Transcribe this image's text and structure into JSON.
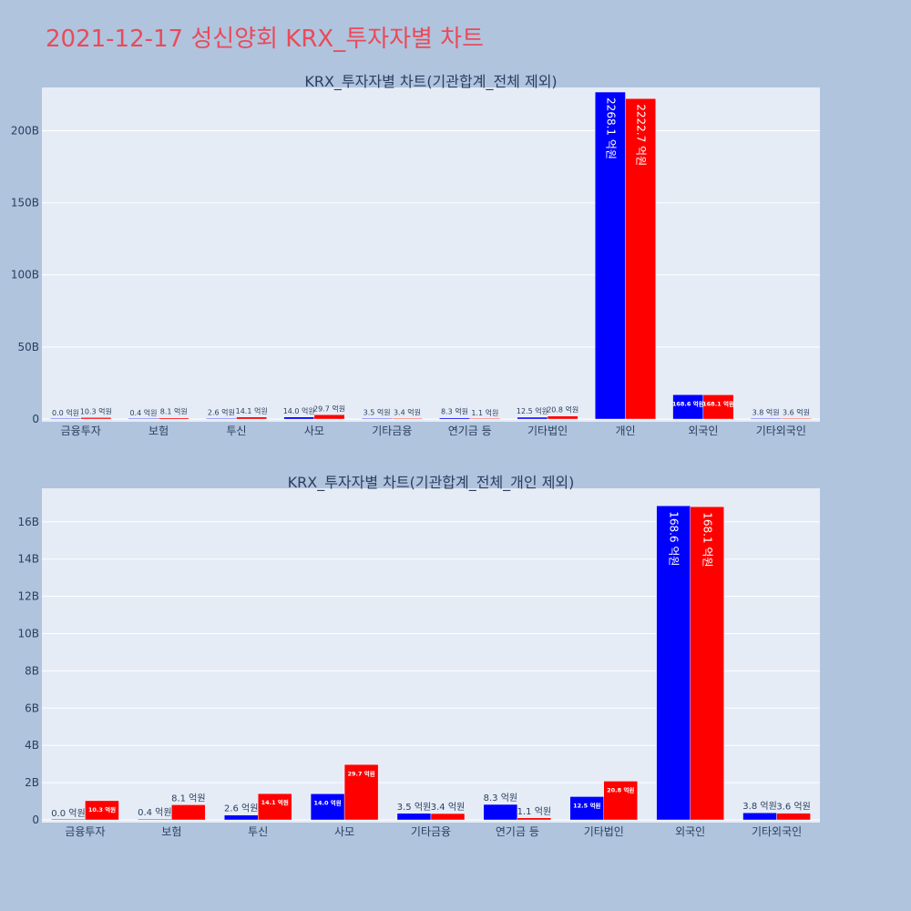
{
  "page_title": "2021-12-17 성신양회 KRX_투자자별 차트",
  "colors": {
    "buy": "#0000ff",
    "sell": "#ff0000",
    "background": "#b0c4de",
    "plot_bg": "#e5ecf6",
    "title": "#ea4a5a"
  },
  "chart_data": [
    {
      "type": "bar",
      "title": "KRX_투자자별 차트(기관합계_전체 제외)",
      "categories": [
        "금융투자",
        "보험",
        "투신",
        "사모",
        "기타금융",
        "연기금 등",
        "기타법인",
        "개인",
        "외국인",
        "기타외국인"
      ],
      "series": [
        {
          "values": [
            0.0,
            0.04,
            0.26,
            1.4,
            0.35,
            0.83,
            1.25,
            226.81,
            16.86,
            0.38
          ],
          "labels": [
            "0.0 억원",
            "0.4 억원",
            "2.6 억원",
            "14.0 억원",
            "3.5 억원",
            "8.3 억원",
            "12.5 억원",
            "2268.1 억원",
            "168.6 억원",
            "3.8 억원"
          ]
        },
        {
          "values": [
            1.03,
            0.81,
            1.41,
            2.97,
            0.34,
            0.11,
            2.08,
            222.27,
            16.81,
            0.36
          ],
          "labels": [
            "10.3 억원",
            "8.1 억원",
            "14.1 억원",
            "29.7 억원",
            "3.4 억원",
            "1.1 억원",
            "20.8 억원",
            "2222.7 억원",
            "168.1 억원",
            "3.6 억원"
          ]
        }
      ],
      "ylim": [
        0,
        230
      ],
      "yticks": [
        0,
        50,
        100,
        150,
        200
      ],
      "ytick_labels": [
        "0",
        "50B",
        "100B",
        "150B",
        "200B"
      ]
    },
    {
      "type": "bar",
      "title": "KRX_투자자별 차트(기관합계_전체_개인 제외)",
      "categories": [
        "금융투자",
        "보험",
        "투신",
        "사모",
        "기타금융",
        "연기금 등",
        "기타법인",
        "외국인",
        "기타외국인"
      ],
      "series": [
        {
          "values": [
            0.0,
            0.04,
            0.26,
            1.4,
            0.35,
            0.83,
            1.25,
            16.86,
            0.38
          ],
          "labels": [
            "0.0 억원",
            "0.4 억원",
            "2.6 억원",
            "14.0 억원",
            "3.5 억원",
            "8.3 억원",
            "12.5 억원",
            "168.6 억원",
            "3.8 억원"
          ]
        },
        {
          "values": [
            1.03,
            0.81,
            1.41,
            2.97,
            0.34,
            0.11,
            2.08,
            16.81,
            0.36
          ],
          "labels": [
            "10.3 억원",
            "8.1 억원",
            "14.1 억원",
            "29.7 억원",
            "3.4 억원",
            "1.1 억원",
            "20.8 억원",
            "168.1 억원",
            "3.6 억원"
          ]
        }
      ],
      "ylim": [
        0,
        17.8
      ],
      "yticks": [
        0,
        2,
        4,
        6,
        8,
        10,
        12,
        14,
        16
      ],
      "ytick_labels": [
        "0",
        "2B",
        "4B",
        "6B",
        "8B",
        "10B",
        "12B",
        "14B",
        "16B"
      ]
    }
  ]
}
